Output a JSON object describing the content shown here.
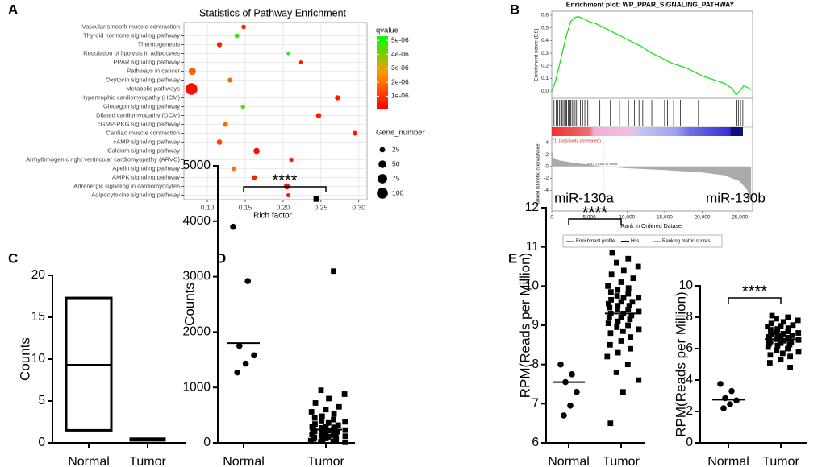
{
  "panel_labels": [
    "A",
    "B",
    "C",
    "D",
    "E"
  ],
  "chart_data": [
    {
      "type": "bubble",
      "title": "Statistics of Pathway Enrichment",
      "xlabel": "Rich factor",
      "categories": [
        "Vascular smooth muscle contraction",
        "Thyroid hormone signaling pathway",
        "Thermogenesis",
        "Regulation of lipolysis in adipocytes",
        "PPAR signaling pathway",
        "Pathways in cancer",
        "Oxytocin signaling pathway",
        "Metabolic pathways",
        "Hypertrophic cardiomyopathy (HCM)",
        "Glucagon signaling pathway",
        "Dilated cardiomyopathy (DCM)",
        "cGMP-PKG signaling pathway",
        "Cardiac muscle contraction",
        "cAMP signaling pathway",
        "Calcium signaling pathway",
        "Arrhythmogenic right ventricular cardiomyopathy (ARVC)",
        "Apelin signaling pathway",
        "AMPK signaling pathway",
        "Adrenergic signaling in cardiomyocytes",
        "Adipocytokine signaling pathway"
      ],
      "values": [
        0.148,
        0.139,
        0.116,
        0.207,
        0.224,
        0.08,
        0.13,
        0.079,
        0.272,
        0.147,
        0.247,
        0.124,
        0.295,
        0.116,
        0.165,
        0.211,
        0.135,
        0.162,
        0.205,
        0.207
      ],
      "qvalue": [
        8e-07,
        4.8e-06,
        6e-07,
        5e-06,
        5e-07,
        1.8e-06,
        1.9e-06,
        3e-07,
        5e-07,
        4.6e-06,
        5e-07,
        1.9e-06,
        5e-07,
        1.2e-06,
        4e-07,
        5e-07,
        2e-06,
        6e-07,
        4e-07,
        5e-07
      ],
      "gene_number": [
        18,
        18,
        22,
        10,
        15,
        45,
        20,
        115,
        22,
        15,
        22,
        20,
        20,
        24,
        32,
        15,
        18,
        20,
        30,
        14
      ],
      "xlim": [
        0.069,
        0.311
      ],
      "xticks": [
        {
          "value": 0.1,
          "label": "0.10"
        },
        0.15,
        {
          "value": 0.2,
          "label": "0.20"
        },
        0.25,
        {
          "value": 0.3,
          "label": "0.30"
        }
      ],
      "grid": true,
      "color_label": "qvalue",
      "color_stops": [
        "#ff0000",
        "#ff9900",
        "#00ff00"
      ],
      "qlim": [
        1e-07,
        5.3e-06
      ],
      "qticks": [
        {
          "value": 5e-06,
          "label": "5e-06"
        },
        {
          "value": 4e-06,
          "label": "4e-06"
        },
        {
          "value": 3e-06,
          "label": "3e-06"
        },
        {
          "value": 2e-06,
          "label": "2e-06"
        },
        {
          "value": 1e-06,
          "label": "1e-06"
        }
      ],
      "size_label": "Gene_number",
      "size_legend": [
        25,
        50,
        75,
        100
      ]
    },
    {
      "type": "line",
      "title": "Enrichment plot: WP_PPAR_SIGNALING_PATHWAY",
      "ylabel": "Enrichment score (ES)",
      "xlabel": "Rank in Ordered Dataset",
      "x": [
        0,
        500,
        1000,
        1500,
        2000,
        2500,
        3000,
        3500,
        4000,
        5000,
        6000,
        7000,
        8000,
        9000,
        10000,
        11000,
        12000,
        13000,
        14000,
        15000,
        16000,
        17000,
        18000,
        19000,
        20000,
        21000,
        22000,
        23000,
        24000,
        24500,
        25000,
        25500,
        26000,
        26500
      ],
      "series": [
        {
          "name": "Enrichment profile",
          "color": "#22dd22",
          "values": [
            0,
            0.08,
            0.2,
            0.33,
            0.45,
            0.55,
            0.58,
            0.59,
            0.58,
            0.55,
            0.53,
            0.5,
            0.47,
            0.44,
            0.41,
            0.38,
            0.35,
            0.31,
            0.28,
            0.25,
            0.22,
            0.2,
            0.18,
            0.15,
            0.12,
            0.1,
            0.08,
            0.06,
            0.02,
            -0.03,
            0.0,
            0.04,
            0.03,
            0.01
          ]
        }
      ],
      "hits": {
        "name": "Hits",
        "color": "#000000",
        "ranks": [
          300,
          600,
          800,
          1000,
          1200,
          1350,
          1500,
          1700,
          1900,
          2000,
          2200,
          2400,
          2500,
          2700,
          2900,
          3100,
          3300,
          3500,
          3800,
          4100,
          4400,
          4800,
          6400,
          7800,
          9000,
          10200,
          11000,
          11600,
          12100,
          13300,
          15000,
          15400,
          16200,
          17100,
          19500,
          24600,
          24800,
          25100,
          25400
        ]
      },
      "ranking": {
        "name": "Ranking metric scores",
        "color": "#aaaaaa",
        "ylabel": "Ranked list metric (Signal2Noise)",
        "x": [
          0,
          200,
          1000,
          3000,
          5000,
          6856,
          10000,
          15000,
          20000,
          23000,
          25000,
          26000,
          26500
        ],
        "values": [
          3,
          1.5,
          1,
          0.6,
          0.3,
          0,
          -0.3,
          -0.6,
          -1,
          -1.5,
          -2.5,
          -4,
          -6
        ],
        "ylim": [
          -7.5,
          5
        ],
        "yticks": [
          4,
          2,
          0,
          -2,
          -4
        ]
      },
      "zero_cross": 6856,
      "zero_cross_label": "Zero cross at 6856",
      "phenotype_label": "'1' (positively correlated)",
      "xlim": [
        0,
        26700
      ],
      "xticks": [
        0,
        {
          "value": 5000,
          "label": "5,000"
        },
        {
          "value": 10000,
          "label": "10,000"
        },
        {
          "value": 15000,
          "label": "15,000"
        },
        {
          "value": 20000,
          "label": "20,000"
        },
        {
          "value": 25000,
          "label": "25,000"
        }
      ],
      "ylim": [
        -0.057,
        0.632
      ],
      "yticks": [
        {
          "value": 0,
          "label": "0.0"
        },
        0.1,
        0.2,
        0.3,
        0.4,
        0.5,
        0.6
      ]
    },
    {
      "type": "box",
      "ylabel": "Counts",
      "categories": [
        "Normal",
        "Tumor"
      ],
      "low": [
        1.5,
        0.3
      ],
      "mid": [
        9.3,
        0.4
      ],
      "high": [
        17.3,
        0.5
      ],
      "color": "#000000",
      "ylim": [
        0,
        20
      ],
      "yticks": [
        0,
        5,
        10,
        15,
        20
      ]
    },
    {
      "type": "strip",
      "ylabel": "Counts",
      "categories": [
        "Normal",
        "Tumor"
      ],
      "significance": "****",
      "series": [
        {
          "marker": "circle",
          "color": "#000000",
          "median": 1800,
          "values": [
            3900,
            2920,
            1750,
            1580,
            1430,
            1270
          ]
        },
        {
          "marker": "square",
          "color": "#000000",
          "median": 240,
          "values": [
            4400,
            3100,
            950,
            880,
            800,
            720,
            650,
            600,
            560,
            520,
            480,
            450,
            420,
            400,
            380,
            360,
            340,
            320,
            300,
            290,
            280,
            270,
            260,
            250,
            240,
            230,
            220,
            210,
            200,
            190,
            180,
            170,
            160,
            150,
            140,
            130,
            120,
            110,
            100,
            90,
            80,
            70,
            60,
            50,
            40,
            30,
            20,
            10
          ]
        }
      ],
      "ylim": [
        0,
        5000
      ],
      "yticks": [
        0,
        1000,
        2000,
        3000,
        4000,
        5000
      ]
    },
    {
      "type": "strip",
      "title": "miR-130a",
      "ylabel": "RPM(Reads per Million)",
      "categories": [
        "Normal",
        "Tumor"
      ],
      "significance": "****",
      "series": [
        {
          "marker": "circle",
          "color": "#000000",
          "median": 7.55,
          "values": [
            8.0,
            7.75,
            7.55,
            7.3,
            6.95,
            6.7
          ]
        },
        {
          "marker": "square",
          "color": "#000000",
          "median": 9.3,
          "values": [
            10.85,
            10.7,
            10.6,
            10.5,
            10.4,
            10.3,
            10.2,
            10.1,
            10.0,
            9.95,
            9.9,
            9.85,
            9.8,
            9.75,
            9.7,
            9.7,
            9.65,
            9.6,
            9.6,
            9.55,
            9.5,
            9.5,
            9.45,
            9.4,
            9.4,
            9.35,
            9.3,
            9.3,
            9.25,
            9.2,
            9.2,
            9.15,
            9.1,
            9.05,
            9.0,
            8.95,
            8.9,
            8.85,
            8.8,
            8.7,
            8.6,
            8.5,
            8.4,
            8.3,
            8.2,
            8.0,
            7.8,
            7.6,
            7.3,
            6.5
          ]
        }
      ],
      "ylim": [
        6,
        12
      ],
      "yticks": [
        6,
        7,
        8,
        9,
        10,
        11,
        12
      ]
    },
    {
      "type": "strip",
      "title": "miR-130b",
      "ylabel": "RPM(Reads per Million)",
      "categories": [
        "Normal",
        "Tumor"
      ],
      "significance": "****",
      "series": [
        {
          "marker": "circle",
          "color": "#000000",
          "median": 2.75,
          "values": [
            3.75,
            3.3,
            2.85,
            2.7,
            2.45,
            2.2
          ]
        },
        {
          "marker": "square",
          "color": "#000000",
          "median": 6.6,
          "values": [
            8.1,
            8.0,
            7.9,
            7.8,
            7.7,
            7.6,
            7.5,
            7.45,
            7.4,
            7.3,
            7.25,
            7.2,
            7.1,
            7.05,
            7.0,
            6.95,
            6.9,
            6.85,
            6.8,
            6.75,
            6.7,
            6.7,
            6.65,
            6.6,
            6.6,
            6.55,
            6.5,
            6.45,
            6.4,
            6.35,
            6.3,
            6.25,
            6.2,
            6.1,
            6.0,
            5.9,
            5.8,
            5.7,
            5.6,
            5.5,
            5.3,
            5.1,
            4.8
          ]
        }
      ],
      "ylim": [
        0,
        10
      ],
      "yticks": [
        0,
        2,
        4,
        6,
        8,
        10
      ]
    }
  ]
}
